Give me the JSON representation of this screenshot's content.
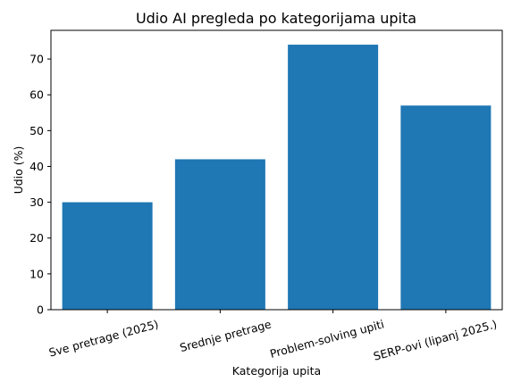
{
  "chart_data": {
    "type": "bar",
    "title": "Udio AI pregleda po kategorijama upita",
    "xlabel": "Kategorija upita",
    "ylabel": "Udio (%)",
    "categories": [
      "Sve pretrage (2025)",
      "Srednje pretrage",
      "Problem-solving upiti",
      "SERP-ovi (lipanj 2025.)"
    ],
    "values": [
      30,
      42,
      74,
      57
    ],
    "ylim": [
      0,
      78
    ],
    "yticks": [
      0,
      10,
      20,
      30,
      40,
      50,
      60,
      70
    ],
    "bar_color": "#1f77b4",
    "grid": false,
    "legend": "none"
  }
}
